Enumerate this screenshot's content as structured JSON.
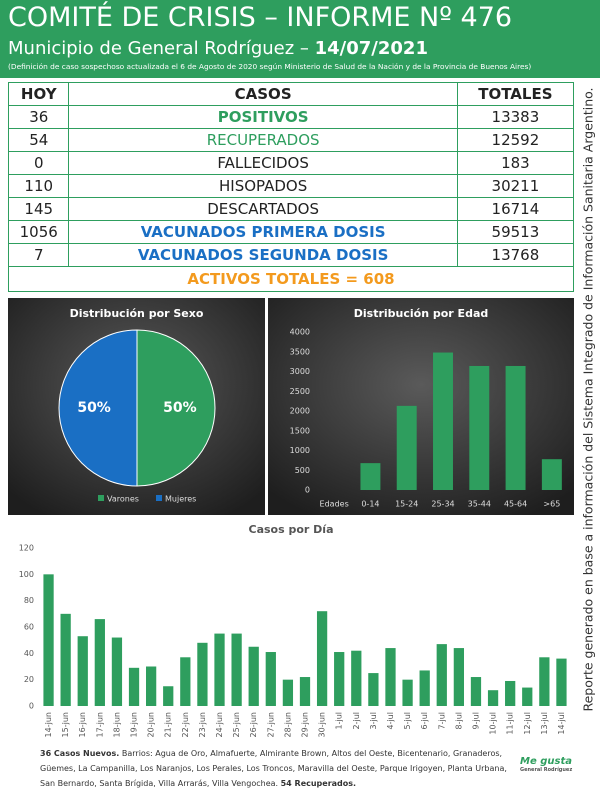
{
  "header": {
    "title": "COMITÉ DE CRISIS – INFORME Nº 476",
    "subtitle": "Municipio de General Rodríguez – ",
    "date": "14/07/2021",
    "note": "(Definición de caso sospechoso actualizada el 6 de Agosto de 2020 según Ministerio de Salud de la Nación y de la Provincia de Buenos Aires)"
  },
  "table": {
    "header": [
      "HOY",
      "CASOS",
      "TOTALES"
    ],
    "rows": [
      [
        36,
        "POSITIVOS",
        13383
      ],
      [
        54,
        "RECUPERADOS",
        12592
      ],
      [
        0,
        "FALLECIDOS",
        183
      ],
      [
        110,
        "HISOPADOS",
        30211
      ],
      [
        145,
        "DESCARTADOS",
        16714
      ],
      [
        1056,
        "VACUNADOS PRIMERA DOSIS",
        59513
      ],
      [
        7,
        "VACUNADOS SEGUNDA DOSIS",
        13768
      ]
    ],
    "total_row": "ACTIVOS TOTALES = 608"
  },
  "side_note": "Reporte generado en base a información del Sistema Integrado de Información Sanitaria Argentino.",
  "chart_data": [
    {
      "type": "pie",
      "title": "Distribución por Sexo",
      "categories": [
        "Varones",
        "Mujeres"
      ],
      "values": [
        50,
        50
      ],
      "value_labels": [
        "50%",
        "50%"
      ],
      "colors": [
        "#2e9e5e",
        "#1a6fc4"
      ]
    },
    {
      "type": "bar",
      "title": "Distribución por Edad",
      "categories": [
        "Edades",
        "0-14",
        "15-24",
        "25-34",
        "35-44",
        "45-64",
        ">65"
      ],
      "values": [
        null,
        680,
        2130,
        3480,
        3140,
        3140,
        780
      ],
      "color": "#2e9e5e",
      "ylim": [
        0,
        4000
      ],
      "yticks": [
        0,
        500,
        1000,
        1500,
        2000,
        2500,
        3000,
        3500,
        4000
      ],
      "grid": false
    },
    {
      "type": "bar",
      "title": "Casos por Día",
      "categories": [
        "14-jun",
        "15-jun",
        "16-jun",
        "17-jun",
        "18-jun",
        "19-jun",
        "20-jun",
        "21-jun",
        "22-jun",
        "23-jun",
        "24-jun",
        "25-jun",
        "26-jun",
        "27-jun",
        "28-jun",
        "29-jun",
        "30-jun",
        "1-jul",
        "2-jul",
        "3-jul",
        "4-jul",
        "5-jul",
        "6-jul",
        "7-jul",
        "8-jul",
        "9-jul",
        "10-jul",
        "11-jul",
        "12-jul",
        "13-jul",
        "14-jul"
      ],
      "values": [
        100,
        70,
        53,
        66,
        52,
        29,
        30,
        15,
        37,
        48,
        55,
        55,
        45,
        41,
        20,
        22,
        72,
        41,
        42,
        25,
        44,
        20,
        27,
        47,
        44,
        22,
        12,
        19,
        14,
        37,
        36
      ],
      "color": "#2e9e5e",
      "ylim": [
        0,
        120
      ],
      "yticks": [
        0,
        20,
        40,
        60,
        80,
        100,
        120
      ],
      "grid": false
    }
  ],
  "footer": {
    "bold_start": "36 Casos Nuevos.",
    "text": " Barrios: Agua de Oro, Almafuerte, Almirante Brown, Altos del Oeste, Bicentenario, Granaderos, Güemes, La Campanilla, Los Naranjos, Los Perales, Los Troncos, Maravilla del Oeste, Parque Irigoyen, Planta Urbana, San Bernardo, Santa Brígida, Villa Arrarás, Villa Vengochea. ",
    "bold_end": "54 Recuperados."
  },
  "logo": {
    "title": "Me gusta",
    "subtitle": "General Rodríguez"
  }
}
